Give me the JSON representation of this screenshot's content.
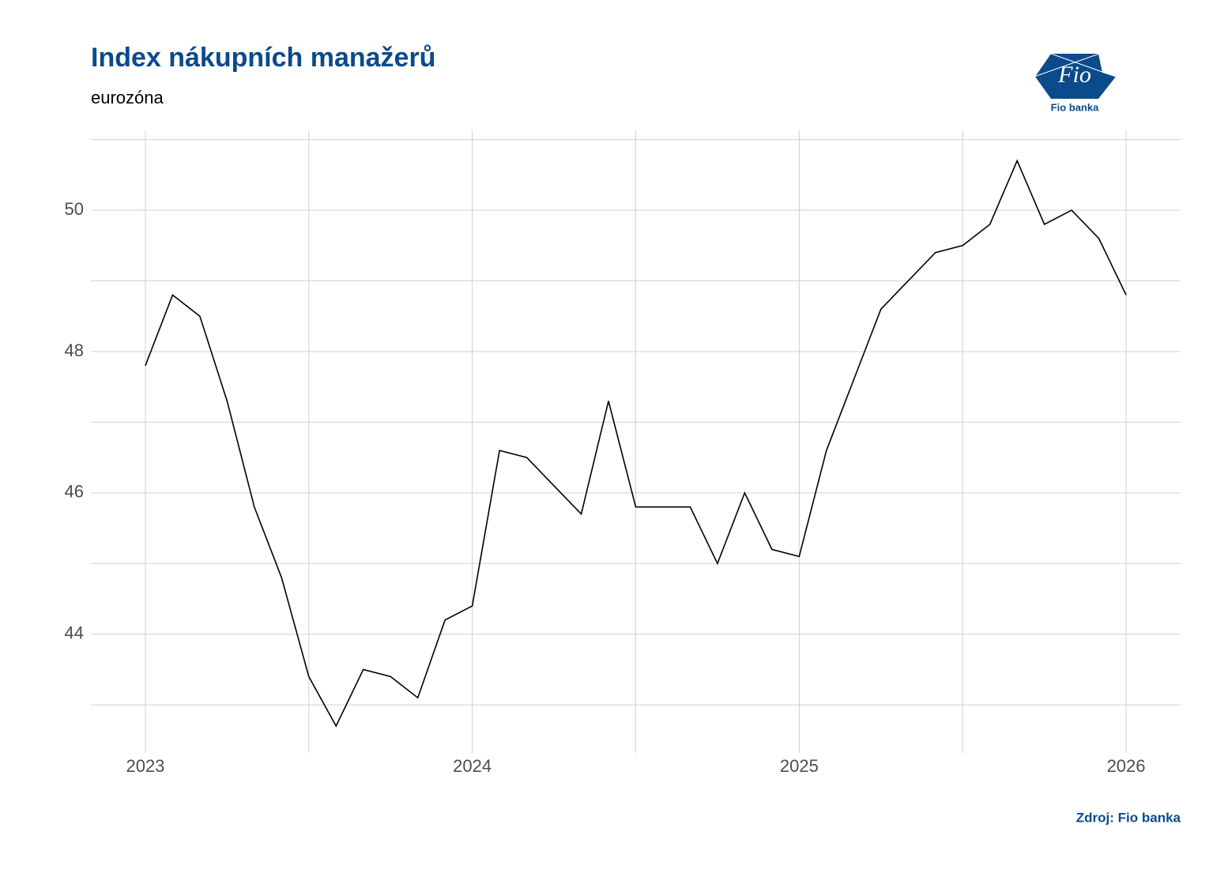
{
  "chart_data": {
    "type": "line",
    "title": "Index nákupních manažerů",
    "subtitle": "eurozóna",
    "source": "Zdroj: Fio banka",
    "logo_mark": "Fio",
    "logo_text": "Fio banka",
    "x": [
      "2023-01",
      "2023-02",
      "2023-03",
      "2023-04",
      "2023-05",
      "2023-06",
      "2023-07",
      "2023-08",
      "2023-09",
      "2023-10",
      "2023-11",
      "2023-12",
      "2024-01",
      "2024-02",
      "2024-03",
      "2024-04",
      "2024-05",
      "2024-06",
      "2024-07",
      "2024-08",
      "2024-09",
      "2024-10",
      "2024-11",
      "2024-12",
      "2025-01",
      "2025-02",
      "2025-03",
      "2025-04",
      "2025-05",
      "2025-06",
      "2025-07",
      "2025-08",
      "2025-09",
      "2025-10",
      "2025-11",
      "2025-12",
      "2026-01"
    ],
    "values": [
      47.8,
      48.8,
      48.5,
      47.3,
      45.8,
      44.8,
      43.4,
      42.7,
      43.5,
      43.4,
      43.1,
      44.2,
      44.4,
      46.6,
      46.5,
      46.1,
      45.7,
      47.3,
      45.8,
      45.8,
      45.8,
      45.0,
      46.0,
      45.2,
      45.1,
      46.6,
      47.6,
      48.6,
      49.0,
      49.4,
      49.5,
      49.8,
      50.7,
      49.8,
      50.0,
      49.6,
      48.8
    ],
    "color": "#000000",
    "xlim": [
      "2022-11",
      "2026-03"
    ],
    "xticks": [
      {
        "value": "2023-01",
        "label": "2023"
      },
      {
        "value": "2024-01",
        "label": "2024"
      },
      {
        "value": "2025-01",
        "label": "2025"
      },
      {
        "value": "2026-01",
        "label": "2026"
      }
    ],
    "x_minor_grid": [
      "2023-07",
      "2024-07",
      "2025-07"
    ],
    "ylim": [
      42.32,
      51.13
    ],
    "yticks": [
      44,
      46,
      48,
      50
    ],
    "y_minor_grid": [
      43,
      45,
      47,
      49,
      51
    ],
    "grid": true
  }
}
